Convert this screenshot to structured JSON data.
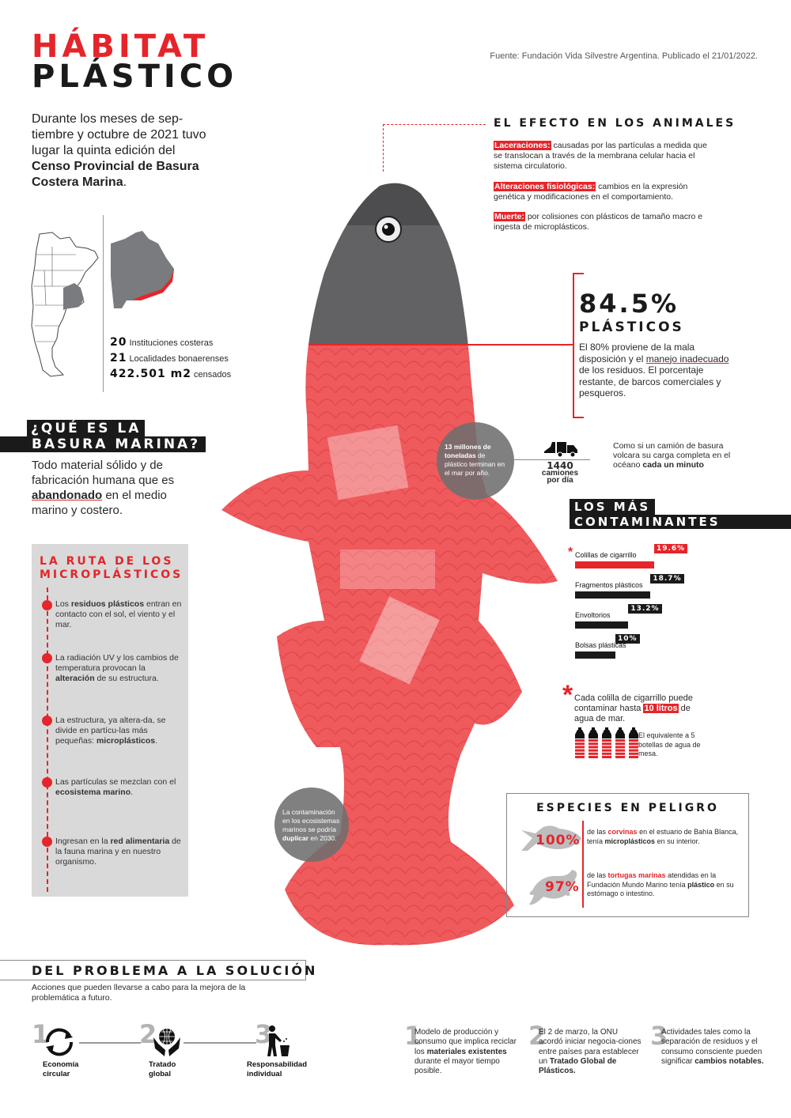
{
  "header": {
    "title_line1": "HÁBITAT",
    "title_line2": "PLÁSTICO",
    "source": "Fuente: Fundación Vida Silvestre Argentina. Publicado el 21/01/2022."
  },
  "intro": [
    [
      "Durante los meses de sep-tiembre y octubre de 2021 tuvo lugar la quinta edición del ",
      ""
    ],
    [
      "Censo Provincial de Basura Costera Marina",
      "b"
    ],
    [
      ".",
      ""
    ]
  ],
  "census": [
    {
      "value": "20",
      "label": "Instituciones costeras"
    },
    {
      "value": "21",
      "label": "Localidades bonaerenses"
    },
    {
      "value": "422.501 m2",
      "label": "censados"
    }
  ],
  "que_es": {
    "title_line1": "¿QUÉ ES LA",
    "title_line2": "BASURA MARINA?",
    "text": [
      [
        "Todo material sólido y de fabricación humana que es ",
        ""
      ],
      [
        "abandonado",
        "bul"
      ],
      [
        " en el medio marino y costero.",
        ""
      ]
    ]
  },
  "ruta": {
    "title": "LA RUTA DE LOS MICROPLÁSTICOS",
    "steps": [
      [
        [
          "Los ",
          ""
        ],
        [
          "residuos plásticos",
          "b"
        ],
        [
          " entran en contacto con el sol, el viento y el mar.",
          ""
        ]
      ],
      [
        [
          "La radiación UV y los cambios de temperatura provocan la ",
          ""
        ],
        [
          "alteración",
          "b"
        ],
        [
          " de su estructura.",
          ""
        ]
      ],
      [
        [
          "La estructura, ya altera-da, se divide en partícu-las más pequeñas: ",
          ""
        ],
        [
          "microplásticos",
          "b"
        ],
        [
          ".",
          ""
        ]
      ],
      [
        [
          "Las partículas se mezclan con el ",
          ""
        ],
        [
          "ecosistema marino",
          "b"
        ],
        [
          ".",
          ""
        ]
      ],
      [
        [
          "Ingresan en la ",
          ""
        ],
        [
          "red alimentaria",
          "b"
        ],
        [
          " de la fauna marina y en nuestro organismo.",
          ""
        ]
      ]
    ]
  },
  "efecto": {
    "title": "EL EFECTO EN LOS ANIMALES",
    "items": [
      [
        [
          "Laceraciones:",
          "hl"
        ],
        [
          " causadas por las partículas a medida que se translocan a través de la membrana celular hacia el sistema circulatorio.",
          ""
        ]
      ],
      [
        [
          "Alteraciones fisiológicas:",
          "hl"
        ],
        [
          " cambios en la expresión genética y modificaciones en el comportamiento.",
          ""
        ]
      ],
      [
        [
          "Muerte:",
          "hl"
        ],
        [
          " por colisiones con plásticos de tamaño macro e ingesta de microplásticos.",
          ""
        ]
      ]
    ]
  },
  "plasticos": {
    "value": "84.5%",
    "label": "PLÁSTICOS",
    "text": [
      [
        "El 80% proviene de la mala disposición y el ",
        ""
      ],
      [
        "manejo inadecuado",
        "ul"
      ],
      [
        " de los residuos. El porcentaje restante, de barcos comerciales y pesqueros.",
        ""
      ]
    ]
  },
  "circle_top": [
    [
      "13 millones de toneladas",
      "b"
    ],
    [
      " de plástico terminan en el mar por año.",
      ""
    ]
  ],
  "circle_bottom": [
    [
      "La contaminación en los ecosistemas marinos se podría ",
      ""
    ],
    [
      "duplicar",
      "b"
    ],
    [
      " en 2030.",
      ""
    ]
  ],
  "trucks": {
    "value": "1440",
    "unit": "camiones por día",
    "text": [
      [
        "Como si un camión de basura volcara su carga completa en el océano ",
        ""
      ],
      [
        "cada un minuto",
        "b"
      ]
    ]
  },
  "chart_data": {
    "type": "bar",
    "title": "LOS MÁS CONTAMINANTES",
    "title_line1": "LOS MÁS",
    "title_line2": "CONTAMINANTES",
    "categories": [
      "Colillas de cigarrillo",
      "Fragmentos plásticos",
      "Envoltorios",
      "Bolsas plásticas"
    ],
    "values": [
      19.6,
      18.7,
      13.2,
      10
    ],
    "value_labels": [
      "19.6%",
      "18.7%",
      "13.2%",
      "10%"
    ],
    "unit": "%",
    "highlight_color": "#e5252a",
    "bar_color": "#1a1a1a",
    "orientation": "horizontal"
  },
  "cigarette_note": {
    "asterisk": "*",
    "text": [
      [
        "Cada colilla de cigarrillo puede contaminar hasta ",
        ""
      ],
      [
        "10 litros",
        "hl"
      ],
      [
        " de agua de mar.",
        ""
      ]
    ],
    "bottles": 5,
    "equivalent": "El equivalente a 5 botellas de agua de mesa."
  },
  "especies": {
    "title": "ESPECIES EN PELIGRO",
    "items": [
      {
        "value": "100%",
        "icon": "fish-icon",
        "text": [
          [
            "de las ",
            ""
          ],
          [
            "corvinas",
            "red"
          ],
          [
            " en el estuario de Bahía Blanca, tenía ",
            ""
          ],
          [
            "microplásticos",
            "b"
          ],
          [
            " en su interior.",
            ""
          ]
        ]
      },
      {
        "value": "97%",
        "icon": "turtle-icon",
        "text": [
          [
            "de las ",
            ""
          ],
          [
            "tortugas marinas",
            "red"
          ],
          [
            " atendidas en la Fundación Mundo Marino tenía ",
            ""
          ],
          [
            "plástico",
            "b"
          ],
          [
            " en su estómago o intestino.",
            ""
          ]
        ]
      }
    ]
  },
  "solucion": {
    "title": "DEL PROBLEMA A LA SOLUCIÓN",
    "subtitle": "Acciones que pueden llevarse a cabo para la mejora de la problemática a futuro.",
    "actions": [
      {
        "number": "1",
        "label": "Economía circular",
        "icon": "recycle-cycle-icon"
      },
      {
        "number": "2",
        "label": "Tratado global",
        "icon": "globe-hands-icon"
      },
      {
        "number": "3",
        "label": "Responsabilidad individual",
        "icon": "person-trash-icon"
      }
    ],
    "details": [
      {
        "number": "1",
        "text": [
          [
            "Modelo de producción y consumo que implica reciclar los ",
            ""
          ],
          [
            "materiales existentes",
            "b"
          ],
          [
            " durante el mayor tiempo posible.",
            ""
          ]
        ]
      },
      {
        "number": "2",
        "text": [
          [
            "El 2 de marzo, la ONU acordó iniciar negocia-ciones entre países para establecer un ",
            ""
          ],
          [
            "Tratado Global de Plásticos.",
            "b"
          ]
        ]
      },
      {
        "number": "3",
        "text": [
          [
            "Actividades tales como la separación de residuos y el consumo consciente pueden significar ",
            ""
          ],
          [
            "cambios notables.",
            "b"
          ]
        ]
      }
    ]
  },
  "colors": {
    "accent": "#e5252a",
    "dark": "#1a1a1a",
    "panel": "#d9d9d9",
    "circle": "#6e6e70"
  }
}
